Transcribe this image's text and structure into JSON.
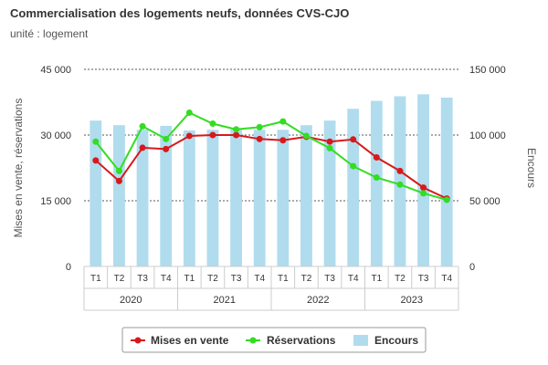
{
  "title": "Commercialisation des logements neufs, données CVS-CJO",
  "subtitle": "unité : logement",
  "colors": {
    "mises": "#d7191c",
    "reservations": "#33dd22",
    "encours": "#b0dcee"
  },
  "chart_data": {
    "type": "bar",
    "title": "Commercialisation des logements neufs, données CVS-CJO",
    "subtitle": "unité : logement",
    "categories": [
      "T1",
      "T2",
      "T3",
      "T4",
      "T1",
      "T2",
      "T3",
      "T4",
      "T1",
      "T2",
      "T3",
      "T4",
      "T1",
      "T2",
      "T3",
      "T4"
    ],
    "groups": [
      {
        "label": "2020",
        "span": 4
      },
      {
        "label": "2021",
        "span": 4
      },
      {
        "label": "2022",
        "span": 4
      },
      {
        "label": "2023",
        "span": 4
      }
    ],
    "ylabel": "Mises en vente, réservations",
    "y2label": "Encours",
    "ylim": [
      0,
      45000
    ],
    "y2lim": [
      0,
      150000
    ],
    "yticks": [
      "0",
      "15 000",
      "30 000",
      "45 000"
    ],
    "y2ticks": [
      "0",
      "50 000",
      "100 000",
      "150 000"
    ],
    "grid": true,
    "legend_position": "bottom",
    "series": [
      {
        "name": "Mises en vente",
        "type": "line",
        "axis": "left",
        "color": "#d7191c",
        "values": [
          24200,
          19500,
          27100,
          26800,
          29800,
          30000,
          30000,
          29100,
          28800,
          29600,
          28500,
          29000,
          24900,
          21800,
          18000,
          15500
        ]
      },
      {
        "name": "Réservations",
        "type": "line",
        "axis": "left",
        "color": "#33dd22",
        "values": [
          28500,
          21800,
          32000,
          29100,
          35100,
          32600,
          31300,
          31800,
          33100,
          29800,
          27000,
          22900,
          20300,
          18700,
          16700,
          15200
        ]
      },
      {
        "name": "Encours",
        "type": "bar",
        "axis": "right",
        "color": "#b0dcee",
        "values": [
          111000,
          107500,
          104000,
          107000,
          103500,
          104000,
          104500,
          104000,
          104000,
          107500,
          111000,
          120000,
          126000,
          129500,
          131000,
          128500
        ]
      }
    ]
  }
}
